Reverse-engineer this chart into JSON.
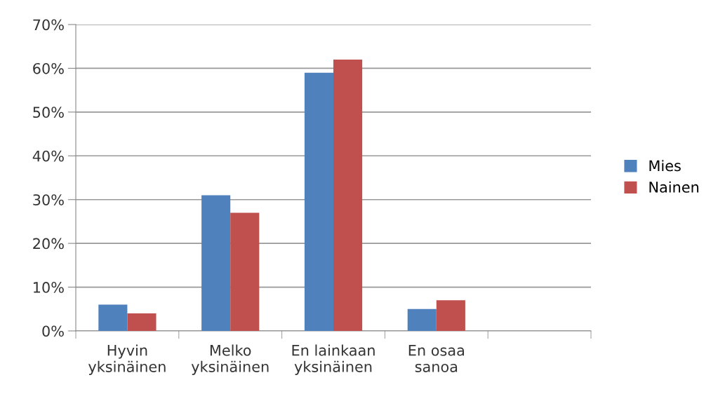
{
  "chart_data": {
    "type": "bar",
    "categories": [
      "Hyvin\nyksinäinen",
      "Melko\nyksinäinen",
      "En lainkaan\nyksinäinen",
      "En osaa\nsanoa",
      null
    ],
    "series": [
      {
        "name": "Mies",
        "color": "#4f81bd",
        "values": [
          6,
          31,
          59,
          5,
          null
        ]
      },
      {
        "name": "Nainen",
        "color": "#c0504d",
        "values": [
          4,
          27,
          62,
          7,
          null
        ]
      }
    ],
    "ylim": [
      0,
      70
    ],
    "yticks": [
      {
        "value": 0,
        "label": "0%"
      },
      {
        "value": 10,
        "label": "10%"
      },
      {
        "value": 20,
        "label": "20%"
      },
      {
        "value": 30,
        "label": "30%"
      },
      {
        "value": 40,
        "label": "40%"
      },
      {
        "value": 50,
        "label": "50%"
      },
      {
        "value": 60,
        "label": "60%"
      },
      {
        "value": 70,
        "label": "70%"
      }
    ],
    "grid": "y",
    "legend": "right"
  }
}
